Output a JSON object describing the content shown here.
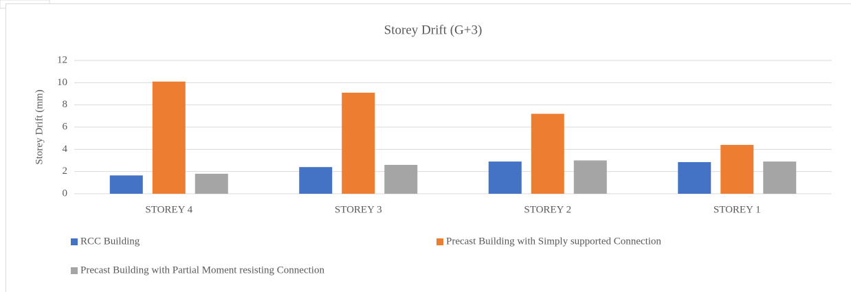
{
  "chart_data": {
    "type": "bar",
    "title": "Storey Drift (G+3)",
    "y_label": "Storey Drift (mm)",
    "categories": [
      "STOREY 4",
      "STOREY 3",
      "STOREY 2",
      "STOREY 1"
    ],
    "series": [
      {
        "name": "RCC Building",
        "color": "#4472c4",
        "values": [
          1.65,
          2.4,
          2.9,
          2.85
        ]
      },
      {
        "name": "Precast Building with Simply supported Connection",
        "color": "#ed7d31",
        "values": [
          10.1,
          9.1,
          7.2,
          4.4
        ]
      },
      {
        "name": "Precast Building with Partial Moment resisting Connection",
        "color": "#a5a5a5",
        "values": [
          1.8,
          2.6,
          3.0,
          2.9
        ]
      }
    ],
    "ylim": [
      0,
      12
    ],
    "yticks": [
      0,
      2,
      4,
      6,
      8,
      10,
      12
    ],
    "grid": true
  }
}
